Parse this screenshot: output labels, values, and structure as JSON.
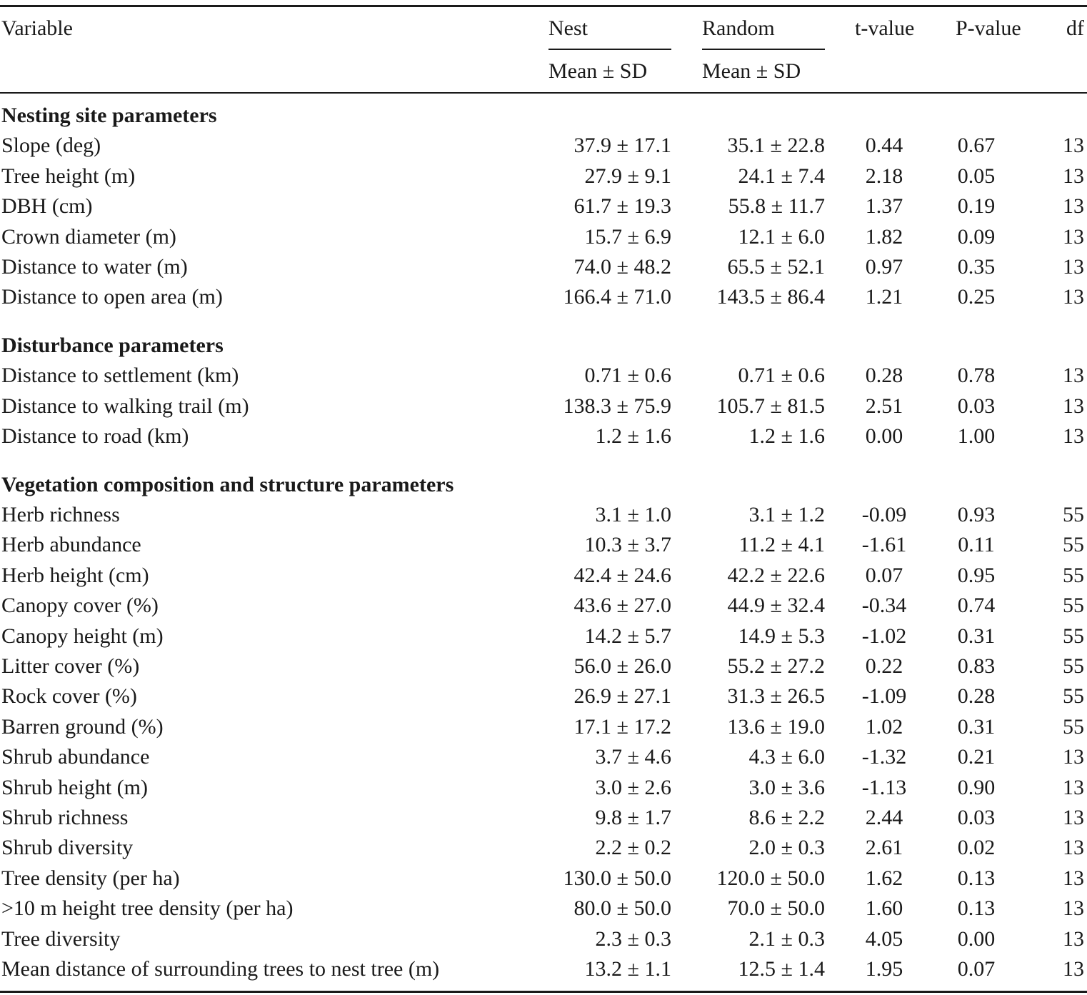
{
  "table": {
    "headers": [
      "Variable",
      "Nest",
      "Random",
      "t-value",
      "P-value",
      "df"
    ],
    "subheaders": [
      "Mean ± SD",
      "Mean ± SD"
    ],
    "sections": [
      {
        "title": "Nesting site parameters",
        "rows": [
          [
            "Slope (deg)",
            "37.9 ± 17.1",
            "35.1 ± 22.8",
            "0.44",
            "0.67",
            "13"
          ],
          [
            "Tree height (m)",
            "27.9 ± 9.1",
            "24.1 ± 7.4",
            "2.18",
            "0.05",
            "13"
          ],
          [
            "DBH (cm)",
            "61.7 ± 19.3",
            "55.8 ± 11.7",
            "1.37",
            "0.19",
            "13"
          ],
          [
            "Crown diameter (m)",
            "15.7 ± 6.9",
            "12.1 ± 6.0",
            "1.82",
            "0.09",
            "13"
          ],
          [
            "Distance to water (m)",
            "74.0 ± 48.2",
            "65.5 ± 52.1",
            "0.97",
            "0.35",
            "13"
          ],
          [
            "Distance to open area (m)",
            "166.4 ± 71.0",
            "143.5 ± 86.4",
            "1.21",
            "0.25",
            "13"
          ]
        ]
      },
      {
        "title": "Disturbance parameters",
        "rows": [
          [
            "Distance to settlement (km)",
            "0.71 ± 0.6",
            "0.71 ± 0.6",
            "0.28",
            "0.78",
            "13"
          ],
          [
            "Distance to walking trail (m)",
            "138.3 ± 75.9",
            "105.7 ± 81.5",
            "2.51",
            "0.03",
            "13"
          ],
          [
            "Distance to road (km)",
            "1.2 ± 1.6",
            "1.2 ± 1.6",
            "0.00",
            "1.00",
            "13"
          ]
        ]
      },
      {
        "title": "Vegetation composition and structure parameters",
        "rows": [
          [
            "Herb richness",
            "3.1 ± 1.0",
            "3.1 ± 1.2",
            "-0.09",
            "0.93",
            "55"
          ],
          [
            "Herb abundance",
            "10.3 ± 3.7",
            "11.2 ± 4.1",
            "-1.61",
            "0.11",
            "55"
          ],
          [
            "Herb height (cm)",
            "42.4 ± 24.6",
            "42.2 ± 22.6",
            "0.07",
            "0.95",
            "55"
          ],
          [
            "Canopy cover (%)",
            "43.6 ± 27.0",
            "44.9 ± 32.4",
            "-0.34",
            "0.74",
            "55"
          ],
          [
            "Canopy height (m)",
            "14.2 ± 5.7",
            "14.9 ± 5.3",
            "-1.02",
            "0.31",
            "55"
          ],
          [
            "Litter cover (%)",
            "56.0 ± 26.0",
            "55.2 ± 27.2",
            "0.22",
            "0.83",
            "55"
          ],
          [
            "Rock cover (%)",
            "26.9 ± 27.1",
            "31.3 ± 26.5",
            "-1.09",
            "0.28",
            "55"
          ],
          [
            "Barren ground (%)",
            "17.1 ± 17.2",
            "13.6 ± 19.0",
            "1.02",
            "0.31",
            "55"
          ],
          [
            "Shrub abundance",
            "3.7 ± 4.6",
            "4.3 ± 6.0",
            "-1.32",
            "0.21",
            "13"
          ],
          [
            "Shrub height (m)",
            "3.0 ± 2.6",
            "3.0 ± 3.6",
            "-1.13",
            "0.90",
            "13"
          ],
          [
            "Shrub richness",
            "9.8 ± 1.7",
            "8.6 ± 2.2",
            "2.44",
            "0.03",
            "13"
          ],
          [
            "Shrub diversity",
            "2.2 ± 0.2",
            "2.0 ± 0.3",
            "2.61",
            "0.02",
            "13"
          ],
          [
            "Tree density (per ha)",
            "130.0 ± 50.0",
            "120.0 ± 50.0",
            "1.62",
            "0.13",
            "13"
          ],
          [
            ">10 m height tree density (per ha)",
            "80.0 ± 50.0",
            "70.0 ± 50.0",
            "1.60",
            "0.13",
            "13"
          ],
          [
            "Tree diversity",
            "2.3 ± 0.3",
            "2.1 ± 0.3",
            "4.05",
            "0.00",
            "13"
          ],
          [
            "Mean distance of surrounding trees to nest tree (m)",
            "13.2 ± 1.1",
            "12.5 ± 1.4",
            "1.95",
            "0.07",
            "13"
          ]
        ]
      }
    ]
  }
}
